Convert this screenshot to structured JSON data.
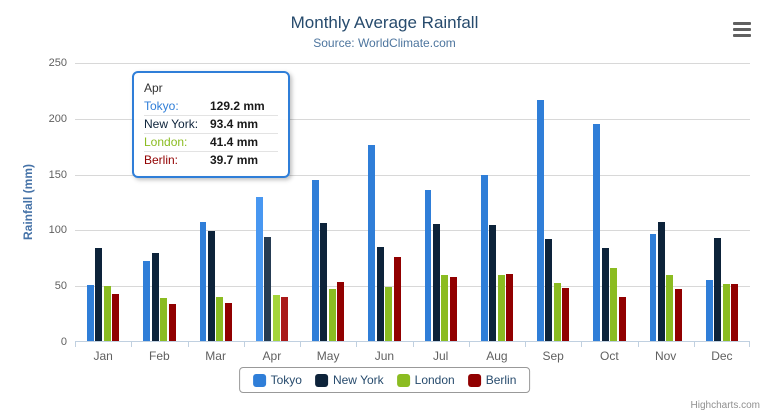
{
  "chart": {
    "title": "Monthly Average Rainfall",
    "subtitle": "Source: WorldClimate.com",
    "credits": "Highcharts.com",
    "colors": {
      "title_text": "#274B6D",
      "subtitle_text": "#4D759E",
      "axis_title_text": "#4572A7",
      "tick_label_text": "#606060",
      "legend_text": "#274B6D",
      "axis_line": "#C0D0E0",
      "gridline": "#D8D8D8",
      "menu_icon": "#606060",
      "credits_text": "#909090"
    }
  },
  "chart_data": {
    "type": "bar",
    "title": "Monthly Average Rainfall",
    "subtitle": "Source: WorldClimate.com",
    "categories": [
      "Jan",
      "Feb",
      "Mar",
      "Apr",
      "May",
      "Jun",
      "Jul",
      "Aug",
      "Sep",
      "Oct",
      "Nov",
      "Dec"
    ],
    "series": [
      {
        "name": "Tokyo",
        "color": "#2F7ED8",
        "hover_color": "#4897F1",
        "values": [
          49.9,
          71.5,
          106.4,
          129.2,
          144.0,
          176.0,
          135.6,
          148.5,
          216.4,
          194.1,
          95.6,
          54.4
        ]
      },
      {
        "name": "New York",
        "color": "#0D233A",
        "hover_color": "#263C53",
        "values": [
          83.6,
          78.8,
          98.5,
          93.4,
          106.0,
          84.5,
          105.0,
          104.3,
          91.2,
          83.5,
          106.6,
          92.3
        ]
      },
      {
        "name": "London",
        "color": "#8BBC21",
        "hover_color": "#A4D53A",
        "values": [
          48.9,
          38.8,
          39.3,
          41.4,
          47.0,
          48.3,
          59.0,
          59.6,
          52.4,
          65.2,
          59.3,
          51.2
        ]
      },
      {
        "name": "Berlin",
        "color": "#910000",
        "hover_color": "#AA1919",
        "values": [
          42.4,
          33.2,
          34.5,
          39.7,
          52.6,
          75.5,
          57.4,
          60.4,
          47.6,
          39.1,
          46.8,
          51.1
        ]
      }
    ],
    "xlabel": "",
    "ylabel": "Rainfall (mm)",
    "ylim": [
      0,
      250
    ],
    "yticks": [
      0,
      50,
      100,
      150,
      200,
      250
    ],
    "grid": true,
    "legend_position": "bottom",
    "hover_category": "Apr"
  },
  "tooltip": {
    "header": "Apr",
    "border_color": "#2F7ED8",
    "rows": [
      {
        "label": "Tokyo:",
        "value": "129.2 mm"
      },
      {
        "label": "New York:",
        "value": "93.4 mm"
      },
      {
        "label": "London:",
        "value": "41.4 mm"
      },
      {
        "label": "Berlin:",
        "value": "39.7 mm"
      }
    ]
  }
}
